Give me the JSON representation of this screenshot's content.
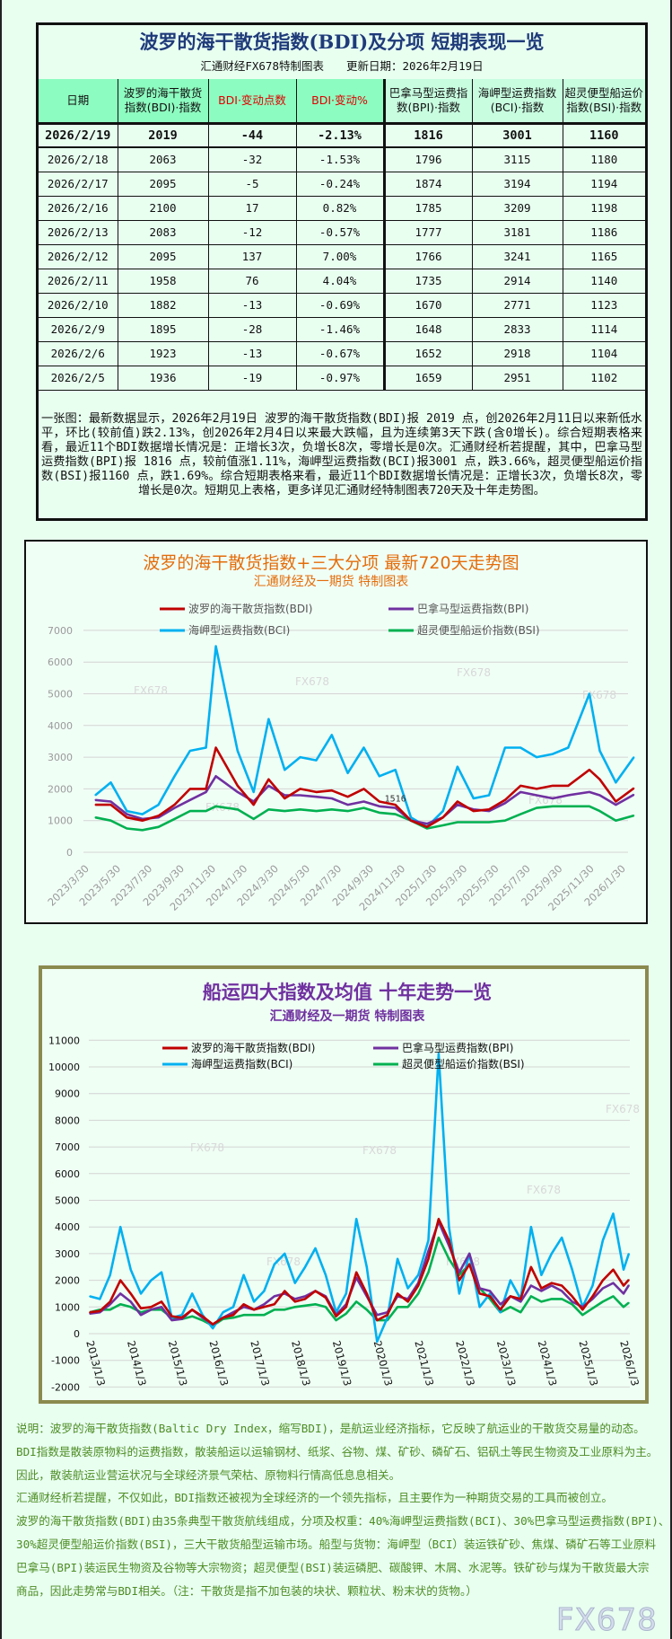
{
  "table": {
    "title": "波罗的海干散货指数(BDI)及分项 短期表现一览",
    "subtitle": "汇通财经FX678特制图表　　更新日期：2026年2月19日",
    "headers": [
      "日期",
      "波罗的海干散货指数(BDI)·指数",
      "BDI·变动点数",
      "BDI·变动%",
      "巴拿马型运费指数(BPI)·指数",
      "海岬型运费指数(BCI)·指数",
      "超灵便型船运价指数(BSI)·指数"
    ],
    "rows": [
      [
        "2026/2/19",
        "2019",
        "-44",
        "-2.13%",
        "1816",
        "3001",
        "1160"
      ],
      [
        "2026/2/18",
        "2063",
        "-32",
        "-1.53%",
        "1796",
        "3115",
        "1180"
      ],
      [
        "2026/2/17",
        "2095",
        "-5",
        "-0.24%",
        "1874",
        "3194",
        "1194"
      ],
      [
        "2026/2/16",
        "2100",
        "17",
        "0.82%",
        "1785",
        "3209",
        "1198"
      ],
      [
        "2026/2/13",
        "2083",
        "-12",
        "-0.57%",
        "1777",
        "3181",
        "1186"
      ],
      [
        "2026/2/12",
        "2095",
        "137",
        "7.00%",
        "1766",
        "3241",
        "1165"
      ],
      [
        "2026/2/11",
        "1958",
        "76",
        "4.04%",
        "1735",
        "2914",
        "1140"
      ],
      [
        "2026/2/10",
        "1882",
        "-13",
        "-0.69%",
        "1670",
        "2771",
        "1123"
      ],
      [
        "2026/2/9",
        "1895",
        "-28",
        "-1.46%",
        "1648",
        "2833",
        "1114"
      ],
      [
        "2026/2/6",
        "1923",
        "-13",
        "-0.67%",
        "1652",
        "2918",
        "1104"
      ],
      [
        "2026/2/5",
        "1936",
        "-19",
        "-0.97%",
        "1659",
        "2951",
        "1102"
      ]
    ],
    "summary": "一张图：最新数据显示，2026年2月19日 波罗的海干散货指数(BDI)报 2019 点，创2026年2月11日以来新低水平，环比(较前值)跌2.13%，创2026年2月4日以来最大跌幅，且为连续第3天下跌(含0增长)。综合短期表格来看，最近11个BDI数据增长情况是：正增长3次，负增长8次，零增长是0次。汇通财经析若提醒，其中，巴拿马型运费指数(BPI)报 1816 点，较前值涨1.11%，海岬型运费指数(BCI)报3001 点，跌3.66%，超灵便型船运价指数(BSI)报1160 点，跌1.69%。综合短期表格来看，最近11个BDI数据增长情况是：正增长3次，负增长8次，零增长是0次。短期见上表格，更多详见汇通财经特制图表720天及十年走势图。"
  },
  "colors": {
    "bdi": "#c00000",
    "bpi": "#7030a0",
    "bci": "#00b0f0",
    "bsi": "#00b050",
    "chart1_title": "#e46c0a",
    "chart2_title": "#7030a0",
    "notes": "#4e8c24"
  },
  "watermark": "FX678",
  "chart_data": [
    {
      "type": "line",
      "title": "波罗的海干散货指数+三大分项  最新720天走势图",
      "subtitle": "汇通财经及一期货  特制图表",
      "legend": [
        "波罗的海干散货指数(BDI)",
        "巴拿马型运费指数(BPI)",
        "海岬型运费指数(BCI)",
        "超灵便型船运价指数(BSI)"
      ],
      "legend_placement": "top",
      "ylim": [
        0,
        7000
      ],
      "yticks": [
        0,
        1000,
        2000,
        3000,
        4000,
        5000,
        6000,
        7000
      ],
      "xticks": [
        "2023/3/30",
        "2023/5/30",
        "2023/7/30",
        "2023/9/30",
        "2023/11/30",
        "2024/1/30",
        "2024/3/30",
        "2024/5/30",
        "2024/7/30",
        "2024/9/30",
        "2024/11/30",
        "2025/1/30",
        "2025/3/30",
        "2025/5/30",
        "2025/7/30",
        "2025/9/30",
        "2025/11/30",
        "2026/1/30"
      ],
      "grid": true,
      "annotation": {
        "text": "1516",
        "x": "2024/11/15",
        "y": 1516
      },
      "x": [
        "2023/4/15",
        "2023/5/15",
        "2023/6/15",
        "2023/7/15",
        "2023/8/15",
        "2023/9/15",
        "2023/10/15",
        "2023/11/15",
        "2023/12/4",
        "2024/1/15",
        "2024/2/15",
        "2024/3/15",
        "2024/4/15",
        "2024/5/15",
        "2024/6/15",
        "2024/7/15",
        "2024/8/15",
        "2024/9/15",
        "2024/10/15",
        "2024/11/15",
        "2024/12/15",
        "2025/1/15",
        "2025/2/15",
        "2025/3/15",
        "2025/4/15",
        "2025/5/15",
        "2025/6/15",
        "2025/7/15",
        "2025/8/15",
        "2025/9/15",
        "2025/10/15",
        "2025/11/25",
        "2025/12/15",
        "2026/1/15",
        "2026/2/19"
      ],
      "series": [
        {
          "name": "波罗的海干散货指数(BDI)",
          "values": [
            1500,
            1500,
            1100,
            1000,
            1150,
            1500,
            2000,
            2000,
            3300,
            2100,
            1500,
            2300,
            1700,
            2000,
            1900,
            1950,
            1750,
            2000,
            1600,
            1500,
            1000,
            800,
            1100,
            1600,
            1300,
            1350,
            1650,
            2100,
            2000,
            2100,
            2100,
            2600,
            2300,
            1600,
            2019
          ]
        },
        {
          "name": "巴拿马型运费指数(BPI)",
          "values": [
            1650,
            1600,
            1200,
            1050,
            1100,
            1400,
            1650,
            1900,
            2400,
            1900,
            1600,
            2100,
            1800,
            1800,
            1750,
            1700,
            1500,
            1600,
            1450,
            1400,
            1000,
            900,
            1100,
            1500,
            1350,
            1300,
            1550,
            1900,
            1800,
            1700,
            1800,
            1900,
            1800,
            1500,
            1816
          ]
        },
        {
          "name": "海岬型运费指数(BCI)",
          "values": [
            1800,
            2200,
            1300,
            1200,
            1500,
            2400,
            3200,
            3300,
            6500,
            3200,
            1900,
            4200,
            2600,
            3000,
            2900,
            3700,
            2500,
            3300,
            2400,
            2600,
            1100,
            800,
            1300,
            2700,
            1700,
            1800,
            3300,
            3300,
            3000,
            3100,
            3300,
            5000,
            3200,
            2200,
            3001
          ]
        },
        {
          "name": "超灵便型船运价指数(BSI)",
          "values": [
            1100,
            1000,
            750,
            700,
            800,
            1050,
            1300,
            1300,
            1450,
            1350,
            1050,
            1350,
            1300,
            1350,
            1300,
            1350,
            1300,
            1400,
            1250,
            1200,
            1000,
            750,
            850,
            950,
            950,
            950,
            1000,
            1200,
            1400,
            1450,
            1450,
            1450,
            1300,
            1000,
            1160
          ]
        }
      ]
    },
    {
      "type": "line",
      "title": "船运四大指数及均值 十年走势一览",
      "subtitle": "汇通财经及一期货 特制图表",
      "legend": [
        "波罗的海干散货指数(BDI)",
        "巴拿马型运费指数(BPI)",
        "海岬型运费指数(BCI)",
        "超灵便型船运价指数(BSI)"
      ],
      "legend_placement": "top",
      "ylim": [
        -2000,
        11000
      ],
      "yticks": [
        -2000,
        -1000,
        0,
        1000,
        2000,
        3000,
        4000,
        5000,
        6000,
        7000,
        8000,
        9000,
        10000,
        11000
      ],
      "xticks": [
        "2013/1/3",
        "2014/1/3",
        "2015/1/3",
        "2016/1/3",
        "2017/1/3",
        "2018/1/3",
        "2019/1/3",
        "2020/1/3",
        "2021/1/3",
        "2022/1/3",
        "2023/1/3",
        "2024/1/3",
        "2025/1/3",
        "2026/1/3"
      ],
      "grid": true,
      "x": [
        "2013/1/3",
        "2013/4/3",
        "2013/7/3",
        "2013/10/3",
        "2014/1/3",
        "2014/4/3",
        "2014/7/3",
        "2014/10/3",
        "2015/1/3",
        "2015/4/3",
        "2015/7/3",
        "2015/10/3",
        "2016/1/3",
        "2016/4/3",
        "2016/7/3",
        "2016/10/3",
        "2017/1/3",
        "2017/4/3",
        "2017/7/3",
        "2017/10/3",
        "2018/1/3",
        "2018/4/3",
        "2018/7/3",
        "2018/10/3",
        "2019/1/3",
        "2019/4/3",
        "2019/7/3",
        "2019/10/3",
        "2020/1/3",
        "2020/4/3",
        "2020/7/3",
        "2020/10/3",
        "2021/1/3",
        "2021/4/3",
        "2021/7/3",
        "2021/10/3",
        "2022/1/3",
        "2022/4/3",
        "2022/7/3",
        "2022/10/3",
        "2023/1/3",
        "2023/4/3",
        "2023/7/3",
        "2023/10/3",
        "2024/1/3",
        "2024/4/3",
        "2024/7/3",
        "2024/10/3",
        "2025/1/3",
        "2025/4/3",
        "2025/7/3",
        "2025/10/3",
        "2026/1/3",
        "2026/2/19"
      ],
      "series": [
        {
          "name": "波罗的海干散货指数(BDI)",
          "values": [
            800,
            850,
            1200,
            2000,
            1500,
            950,
            1000,
            1200,
            650,
            600,
            900,
            650,
            350,
            600,
            700,
            1100,
            900,
            1000,
            1100,
            1600,
            1200,
            1300,
            1600,
            1350,
            650,
            1000,
            2300,
            1500,
            500,
            700,
            1500,
            1200,
            1800,
            2800,
            4300,
            3500,
            2000,
            2600,
            1500,
            1400,
            900,
            1400,
            1300,
            2500,
            1700,
            1900,
            1800,
            1400,
            900,
            1400,
            2000,
            2400,
            1800,
            2019
          ]
        },
        {
          "name": "巴拿马型运费指数(BPI)",
          "values": [
            750,
            800,
            1100,
            1500,
            1200,
            700,
            900,
            1000,
            500,
            550,
            900,
            600,
            350,
            600,
            800,
            1000,
            900,
            1100,
            1400,
            1500,
            1300,
            1400,
            1600,
            1400,
            700,
            1100,
            2100,
            1400,
            700,
            800,
            1400,
            1300,
            1900,
            3100,
            4200,
            3300,
            2300,
            3000,
            1700,
            1600,
            1100,
            1400,
            1200,
            1800,
            1600,
            1800,
            1600,
            1200,
            1000,
            1300,
            1700,
            1900,
            1500,
            1816
          ]
        },
        {
          "name": "海岬型运费指数(BCI)",
          "values": [
            1400,
            1300,
            2200,
            4000,
            2400,
            1500,
            2000,
            2300,
            600,
            700,
            1500,
            700,
            200,
            800,
            1000,
            2200,
            1200,
            1600,
            2600,
            3000,
            1900,
            2500,
            3200,
            2200,
            800,
            1500,
            4300,
            2500,
            -300,
            600,
            2800,
            1700,
            2200,
            3500,
            10500,
            4000,
            1500,
            3000,
            1000,
            1500,
            800,
            2000,
            1300,
            4000,
            2200,
            3000,
            3600,
            2400,
            1000,
            1800,
            3500,
            4500,
            2400,
            3001
          ]
        },
        {
          "name": "超灵便型船运价指数(BSI)",
          "values": [
            800,
            900,
            900,
            1100,
            1000,
            800,
            900,
            900,
            600,
            550,
            650,
            500,
            300,
            550,
            600,
            700,
            700,
            700,
            900,
            900,
            1000,
            1050,
            1100,
            1000,
            500,
            750,
            1200,
            900,
            500,
            500,
            1000,
            1000,
            1500,
            2300,
            3600,
            2800,
            2200,
            2600,
            1700,
            1300,
            800,
            1000,
            800,
            1400,
            1200,
            1300,
            1300,
            1100,
            700,
            950,
            1200,
            1400,
            1000,
            1160
          ]
        }
      ]
    }
  ],
  "notes": [
    "说明：波罗的海干散货指数(Baltic Dry Index，缩写BDI)，是航运业经济指标，它反映了航运业的干散货交易量的动态。",
    "BDI指数是散装原物料的运费指数，散装船运以运输钢材、纸浆、谷物、煤、矿砂、磷矿石、铝矾土等民生物资及工业原料为主。",
    "因此，散装航运业营运状况与全球经济景气荣枯、原物料行情高低息息相关。",
    "汇通财经析若提醒，不仅如此，BDI指数还被视为全球经济的一个领先指标，且主要作为一种期货交易的工具而被创立。",
    "波罗的海干散货指数(BDI)由35条典型干散货航线组成，分项及权重：40%海岬型运费指数(BCI)、30%巴拿马型运费指数(BPI)、",
    "30%超灵便型船运价指数(BSI)，三大干散货船型运输市场。船型与货物：海岬型（BCI）装运铁矿砂、焦煤、磷矿石等工业原料",
    "巴拿马(BPI)装运民生物资及谷物等大宗物资；超灵便型(BSI)装运磷肥、碳酸钾、木屑、水泥等。铁矿砂与煤为干散货最大宗",
    "商品，因此走势常与BDI相关。（注：干散货是指不加包装的块状、颗粒状、粉末状的货物。）"
  ],
  "logo": "FX678"
}
